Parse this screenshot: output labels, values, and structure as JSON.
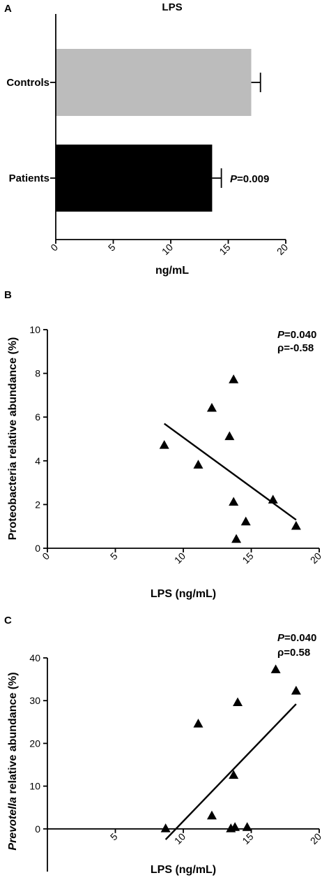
{
  "chart_data": [
    {
      "panel": "A",
      "type": "bar",
      "orientation": "horizontal",
      "title": "LPS",
      "categories": [
        "Controls",
        "Patients"
      ],
      "values": [
        17.0,
        13.6
      ],
      "errors": [
        0.8,
        0.8
      ],
      "colors": [
        "#bcbcbc",
        "#000000"
      ],
      "xlabel": "ng/mL",
      "xlim": [
        0,
        20
      ],
      "xticks": [
        "0",
        "5",
        "10",
        "15",
        "20"
      ],
      "annotation": {
        "p_label": "P",
        "p_value": "=0.009"
      }
    },
    {
      "panel": "B",
      "type": "scatter",
      "marker": "triangle",
      "xlabel": "LPS (ng/mL)",
      "ylabel": "Proteobacteria relative abundance (%)",
      "xlim": [
        0,
        20
      ],
      "ylim": [
        0,
        10
      ],
      "xticks": [
        "0",
        "5",
        "10",
        "15",
        "20"
      ],
      "yticks": [
        "0",
        "2",
        "4",
        "6",
        "8",
        "10"
      ],
      "points": [
        {
          "x": 8.6,
          "y": 4.7
        },
        {
          "x": 11.1,
          "y": 3.8
        },
        {
          "x": 12.1,
          "y": 6.4
        },
        {
          "x": 13.4,
          "y": 5.1
        },
        {
          "x": 13.7,
          "y": 7.7
        },
        {
          "x": 13.7,
          "y": 2.1
        },
        {
          "x": 13.9,
          "y": 0.4
        },
        {
          "x": 14.6,
          "y": 1.2
        },
        {
          "x": 16.6,
          "y": 2.2
        },
        {
          "x": 18.3,
          "y": 1.0
        }
      ],
      "fit_line": {
        "x": [
          8.6,
          18.3
        ],
        "y": [
          5.7,
          1.3
        ]
      },
      "annotation": {
        "p_label": "P",
        "p_value": "=0.040",
        "rho": "ρ=-0.58"
      }
    },
    {
      "panel": "C",
      "type": "scatter",
      "marker": "triangle",
      "xlabel": "LPS (ng/mL)",
      "ylabel_italic": "Prevotella",
      "ylabel_rest": " relative abundance (%)",
      "xlim": [
        0,
        20
      ],
      "ylim": [
        -10,
        40
      ],
      "xticks": [
        "5",
        "10",
        "15",
        "20"
      ],
      "yticks": [
        "0",
        "10",
        "20",
        "30",
        "40"
      ],
      "points": [
        {
          "x": 8.7,
          "y": 0.0
        },
        {
          "x": 11.1,
          "y": 24.5
        },
        {
          "x": 12.1,
          "y": 3.0
        },
        {
          "x": 13.5,
          "y": 0.0
        },
        {
          "x": 13.7,
          "y": 12.5
        },
        {
          "x": 13.8,
          "y": 0.3
        },
        {
          "x": 14.0,
          "y": 29.5
        },
        {
          "x": 14.7,
          "y": 0.3
        },
        {
          "x": 16.8,
          "y": 37.2
        },
        {
          "x": 18.3,
          "y": 32.2
        }
      ],
      "fit_line": {
        "x": [
          8.7,
          18.3
        ],
        "y": [
          -2.5,
          29.2
        ]
      },
      "annotation": {
        "p_label": "P",
        "p_value": "=0.040",
        "rho": "ρ=0.58"
      }
    }
  ]
}
